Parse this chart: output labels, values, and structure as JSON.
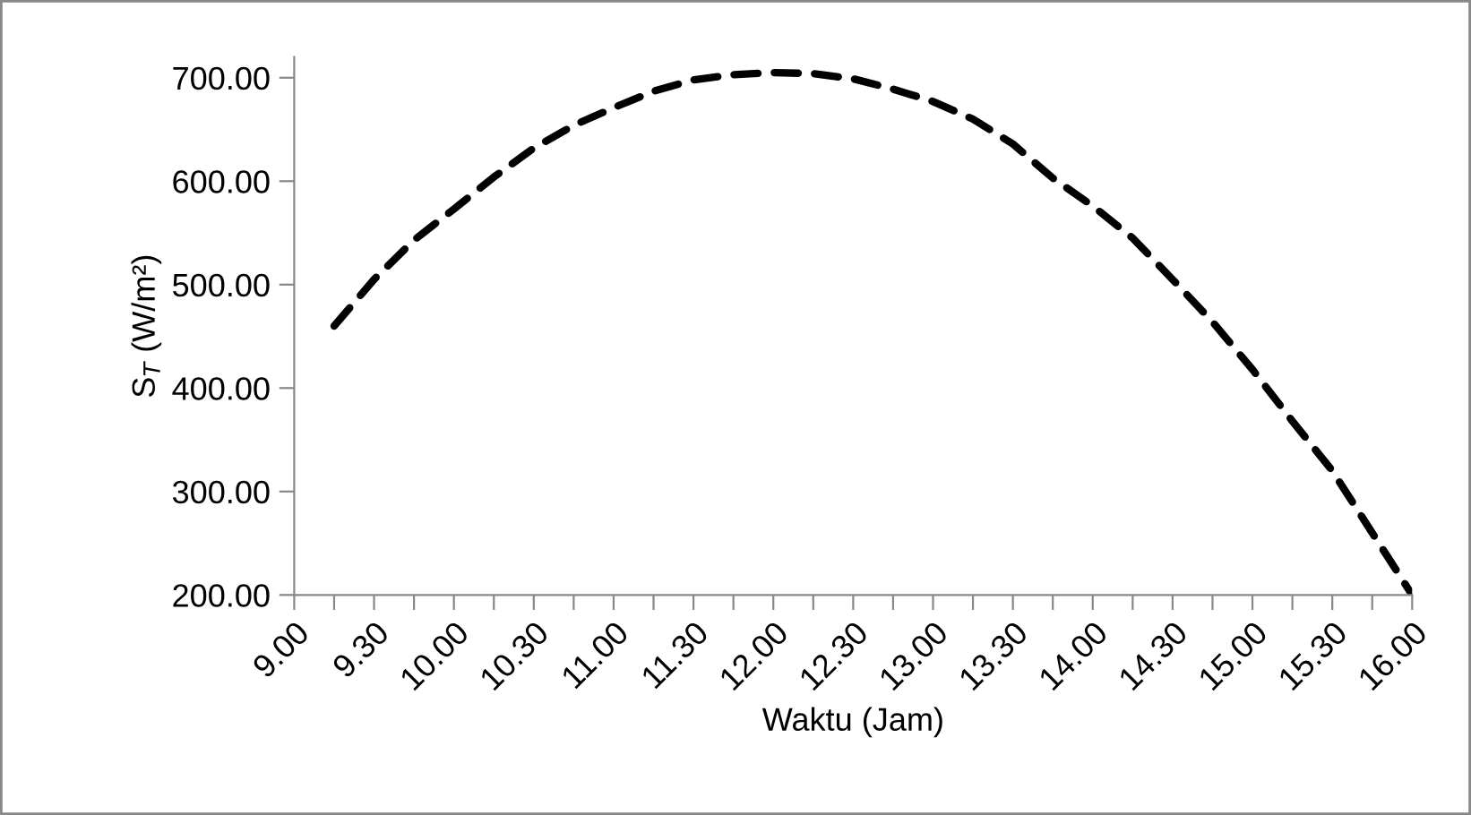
{
  "chart_data": {
    "type": "line",
    "xlabel": "Waktu (Jam)",
    "ylabel": "S$_{T}$ (W/m²)",
    "categories": [
      "9.00",
      null,
      "9.30",
      null,
      "10.00",
      null,
      "10.30",
      null,
      "11.00",
      null,
      "11.30",
      null,
      "12.00",
      null,
      "12.30",
      null,
      "13.00",
      null,
      "13.30",
      null,
      "14.00",
      null,
      "14.30",
      null,
      "15.00",
      null,
      "15.30",
      null,
      "16.00"
    ],
    "series": [
      {
        "color": "#000000",
        "values": [
          null,
          460,
          505,
          543,
          573,
          604,
          632,
          654,
          671,
          687,
          698,
          703,
          705,
          704,
          699,
          689,
          677,
          660,
          636,
          603,
          576,
          545,
          505,
          464,
          418,
          368,
          320,
          260,
          200
        ]
      }
    ],
    "line_style": "dashed",
    "marker": "none",
    "grid": false,
    "ylim": [
      200,
      720
    ],
    "yticks": [
      {
        "value": 200,
        "label": "200.00"
      },
      {
        "value": 300,
        "label": "300.00"
      },
      {
        "value": 400,
        "label": "400.00"
      },
      {
        "value": 500,
        "label": "500.00"
      },
      {
        "value": 600,
        "label": "600.00"
      },
      {
        "value": 700,
        "label": "700.00"
      }
    ]
  }
}
